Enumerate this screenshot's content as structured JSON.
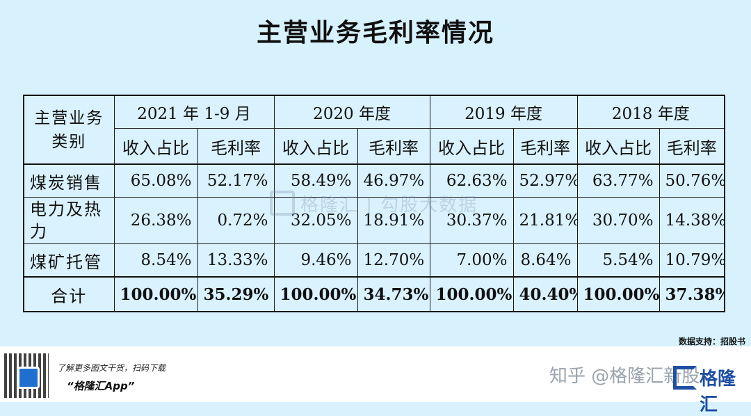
{
  "title": "主营业务毛利率情况",
  "chart_data": {
    "type": "table",
    "corner_header_line1": "主营业务",
    "corner_header_line2": "类别",
    "periods": [
      "2021 年 1-9 月",
      "2020 年度",
      "2019 年度",
      "2018 年度"
    ],
    "sub_headers": [
      "收入占比",
      "毛利率"
    ],
    "rows": [
      {
        "category": "煤炭销售",
        "values": [
          "65.08%",
          "52.17%",
          "58.49%",
          "46.97%",
          "62.63%",
          "52.97%",
          "63.77%",
          "50.76%"
        ]
      },
      {
        "category": "电力及热力",
        "values": [
          "26.38%",
          "0.72%",
          "32.05%",
          "18.91%",
          "30.37%",
          "21.81%",
          "30.70%",
          "14.38%"
        ]
      },
      {
        "category": "煤矿托管",
        "values": [
          "8.54%",
          "13.33%",
          "9.46%",
          "12.70%",
          "7.00%",
          "8.64%",
          "5.54%",
          "10.79%"
        ]
      },
      {
        "category": "合计",
        "values": [
          "100.00%",
          "35.29%",
          "100.00%",
          "34.73%",
          "100.00%",
          "40.40%",
          "100.00%",
          "37.38%"
        ]
      }
    ]
  },
  "watermark_text": "格隆汇 | 勾股大数据",
  "source": "数据支持：招股书",
  "footer": {
    "promo_line1": "了解更多图文干货，扫码下载",
    "promo_line2": "“格隆汇App”",
    "zhihu": "知乎 @格隆汇新股",
    "brand": "格隆汇"
  },
  "colors": {
    "background": "#d7f1fd",
    "border": "#111111",
    "brand_blue": "#1f4fa3"
  }
}
